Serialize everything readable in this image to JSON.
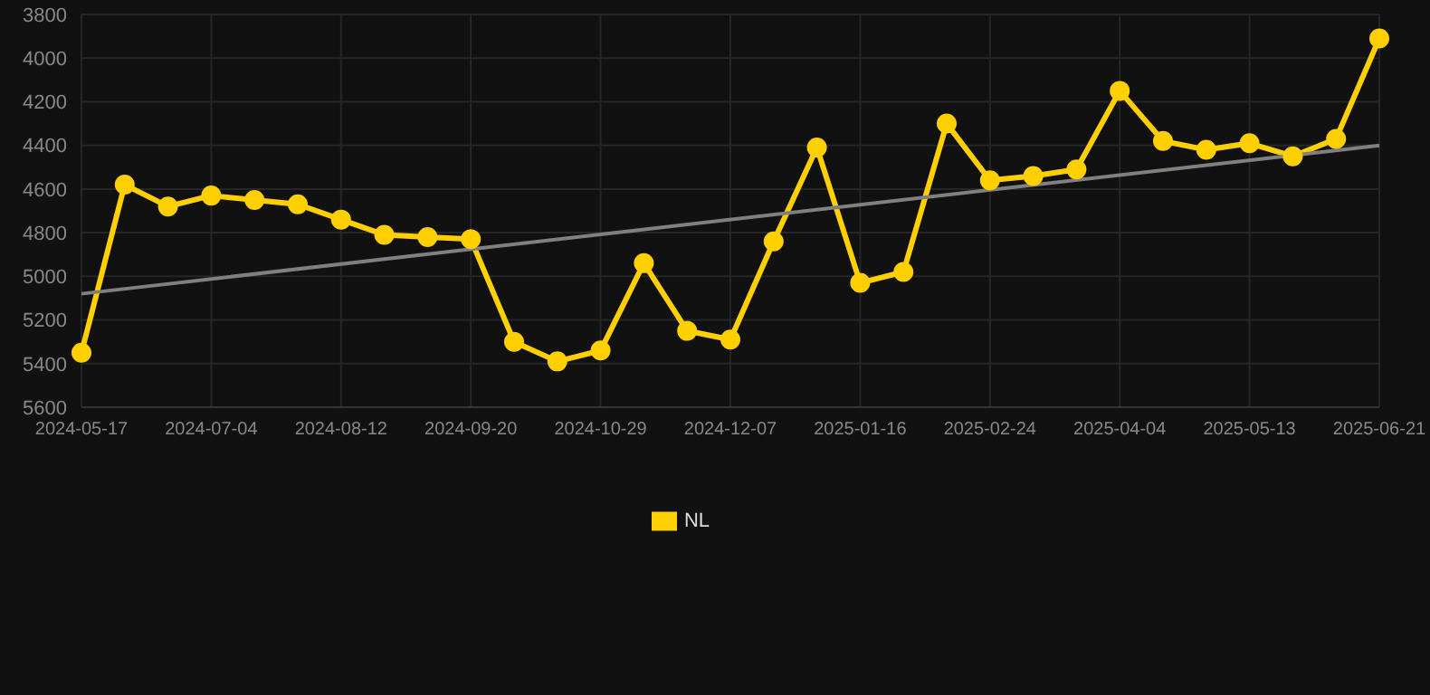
{
  "chart_data": {
    "type": "line",
    "categories": [
      "2024-05-17",
      null,
      null,
      "2024-07-04",
      null,
      null,
      "2024-08-12",
      null,
      null,
      "2024-09-20",
      null,
      null,
      "2024-10-29",
      null,
      null,
      "2024-12-07",
      null,
      null,
      "2025-01-16",
      null,
      null,
      "2025-02-24",
      null,
      null,
      "2025-04-04",
      null,
      null,
      "2025-05-13",
      null,
      null,
      "2025-06-21"
    ],
    "series": [
      {
        "name": "NL",
        "color": "#ffd000",
        "values": [
          5350,
          4580,
          4680,
          4630,
          4650,
          4670,
          4740,
          4810,
          4820,
          4830,
          5300,
          5390,
          5340,
          4940,
          5250,
          5290,
          4840,
          4410,
          5030,
          4980,
          4300,
          4560,
          4540,
          4510,
          4150,
          4380,
          4420,
          4390,
          4450,
          4370,
          3910
        ]
      },
      {
        "color": "#808080",
        "marker": "none",
        "values": [
          5080,
          null,
          null,
          null,
          null,
          null,
          null,
          null,
          null,
          null,
          null,
          null,
          null,
          null,
          null,
          null,
          null,
          null,
          null,
          null,
          null,
          null,
          null,
          null,
          null,
          null,
          null,
          null,
          null,
          null,
          4400
        ]
      }
    ],
    "ylim": [
      5600,
      3800
    ],
    "yticks": [
      3800,
      4000,
      4200,
      4400,
      4600,
      4800,
      5000,
      5200,
      5400,
      5600
    ],
    "grid": true,
    "legend": "bottom",
    "marker": "circle"
  }
}
